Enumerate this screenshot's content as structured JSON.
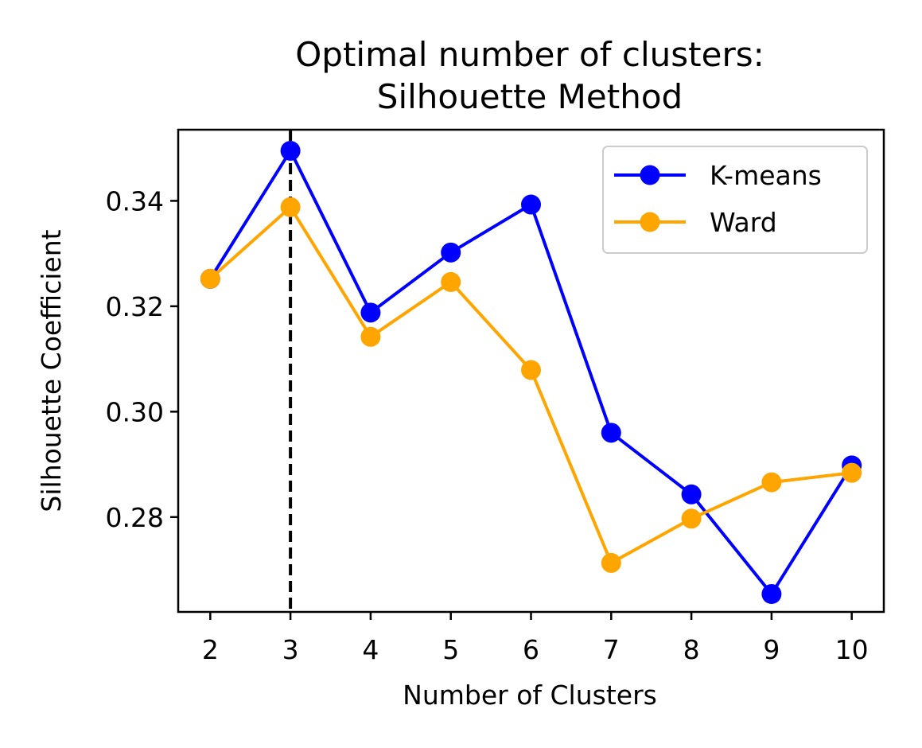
{
  "chart_data": {
    "type": "line",
    "title_line1": "Optimal number of clusters:",
    "title_line2": "Silhouette Method",
    "xlabel": "Number of Clusters",
    "ylabel": "Silhouette Coefficient",
    "x": [
      2,
      3,
      4,
      5,
      6,
      7,
      8,
      9,
      10
    ],
    "x_tick_labels": [
      "2",
      "3",
      "4",
      "5",
      "6",
      "7",
      "8",
      "9",
      "10"
    ],
    "y_ticks": [
      0.28,
      0.3,
      0.32,
      0.34
    ],
    "y_tick_labels": [
      "0.28",
      "0.30",
      "0.32",
      "0.34"
    ],
    "xlim": [
      1.6,
      10.4
    ],
    "ylim": [
      0.262,
      0.3535
    ],
    "grid": false,
    "legend_position": "top-right",
    "vline": {
      "x": 3,
      "style": "dashed",
      "color": "#000000"
    },
    "series": [
      {
        "name": "K-means",
        "color": "#0000ff",
        "values": [
          0.3252,
          0.3495,
          0.3188,
          0.3302,
          0.3393,
          0.296,
          0.2843,
          0.2654,
          0.2898
        ]
      },
      {
        "name": "Ward",
        "color": "#ffa500",
        "values": [
          0.3252,
          0.3388,
          0.3142,
          0.3246,
          0.3079,
          0.2713,
          0.2797,
          0.2866,
          0.2884
        ]
      }
    ]
  }
}
